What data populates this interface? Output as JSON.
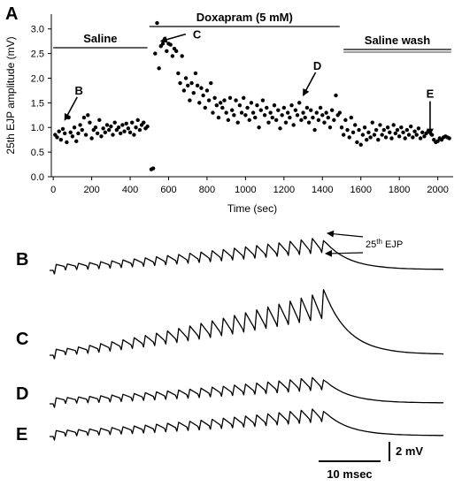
{
  "figure_label": "A",
  "chart_data": {
    "type": "scatter",
    "title": "",
    "xlabel": "Time (sec)",
    "ylabel": "25th EJP amplitude (mV)",
    "xlim": [
      -10,
      2080
    ],
    "ylim": [
      0,
      3.3
    ],
    "xticks": [
      0,
      200,
      400,
      600,
      800,
      1000,
      1200,
      1400,
      1600,
      1800,
      2000
    ],
    "yticks": [
      0.0,
      0.5,
      1.0,
      1.5,
      2.0,
      2.5,
      3.0
    ],
    "ytick_labels": [
      "0.0",
      "0.5",
      "1.0",
      "1.5",
      "2.0",
      "2.5",
      "3.0"
    ],
    "grid": false,
    "conditions": [
      {
        "label": "Saline",
        "x_start": 0,
        "x_end": 490
      },
      {
        "label": "Doxapram (5 mM)",
        "x_start": 500,
        "x_end": 1490
      },
      {
        "label": "Saline wash",
        "x_start": 1510,
        "x_end": 2070
      }
    ],
    "annotations": [
      {
        "label": "B",
        "x": 60,
        "y": 1.15
      },
      {
        "label": "C",
        "x": 560,
        "y": 2.75
      },
      {
        "label": "D",
        "x": 1300,
        "y": 1.65
      },
      {
        "label": "E",
        "x": 1960,
        "y": 0.85
      }
    ],
    "points": [
      [
        10,
        0.85
      ],
      [
        20,
        0.8
      ],
      [
        30,
        0.92
      ],
      [
        40,
        0.75
      ],
      [
        50,
        0.97
      ],
      [
        60,
        0.88
      ],
      [
        70,
        0.7
      ],
      [
        80,
        1.2
      ],
      [
        90,
        0.9
      ],
      [
        100,
        0.82
      ],
      [
        110,
        1.0
      ],
      [
        120,
        0.72
      ],
      [
        130,
        0.88
      ],
      [
        140,
        1.05
      ],
      [
        150,
        0.95
      ],
      [
        160,
        1.2
      ],
      [
        170,
        0.85
      ],
      [
        180,
        1.25
      ],
      [
        190,
        1.1
      ],
      [
        200,
        0.78
      ],
      [
        210,
        0.95
      ],
      [
        220,
        1.0
      ],
      [
        230,
        0.88
      ],
      [
        240,
        1.15
      ],
      [
        250,
        0.82
      ],
      [
        260,
        0.98
      ],
      [
        270,
        0.9
      ],
      [
        280,
        1.05
      ],
      [
        290,
        0.95
      ],
      [
        300,
        1.02
      ],
      [
        310,
        0.85
      ],
      [
        320,
        1.1
      ],
      [
        330,
        0.95
      ],
      [
        340,
        1.0
      ],
      [
        350,
        0.88
      ],
      [
        360,
        1.05
      ],
      [
        370,
        0.92
      ],
      [
        380,
        1.08
      ],
      [
        390,
        0.98
      ],
      [
        400,
        0.9
      ],
      [
        410,
        1.1
      ],
      [
        420,
        0.85
      ],
      [
        430,
        1.0
      ],
      [
        440,
        1.15
      ],
      [
        450,
        0.95
      ],
      [
        460,
        1.05
      ],
      [
        470,
        1.1
      ],
      [
        480,
        0.98
      ],
      [
        490,
        1.02
      ],
      [
        510,
        0.15
      ],
      [
        520,
        0.17
      ],
      [
        530,
        2.5
      ],
      [
        540,
        3.12
      ],
      [
        550,
        2.2
      ],
      [
        560,
        2.65
      ],
      [
        570,
        2.7
      ],
      [
        580,
        2.8
      ],
      [
        590,
        2.55
      ],
      [
        600,
        2.7
      ],
      [
        610,
        2.68
      ],
      [
        620,
        2.45
      ],
      [
        630,
        2.6
      ],
      [
        640,
        2.55
      ],
      [
        650,
        2.1
      ],
      [
        660,
        1.9
      ],
      [
        670,
        2.45
      ],
      [
        680,
        1.75
      ],
      [
        690,
        2.0
      ],
      [
        700,
        1.85
      ],
      [
        710,
        1.55
      ],
      [
        720,
        1.9
      ],
      [
        730,
        1.7
      ],
      [
        740,
        2.1
      ],
      [
        750,
        1.85
      ],
      [
        760,
        1.5
      ],
      [
        770,
        1.8
      ],
      [
        780,
        1.65
      ],
      [
        790,
        1.4
      ],
      [
        800,
        1.75
      ],
      [
        810,
        1.55
      ],
      [
        820,
        1.9
      ],
      [
        830,
        1.3
      ],
      [
        840,
        1.6
      ],
      [
        850,
        1.45
      ],
      [
        860,
        1.2
      ],
      [
        870,
        1.5
      ],
      [
        880,
        1.4
      ],
      [
        890,
        1.55
      ],
      [
        900,
        1.3
      ],
      [
        910,
        1.15
      ],
      [
        920,
        1.6
      ],
      [
        930,
        1.35
      ],
      [
        940,
        1.25
      ],
      [
        950,
        1.55
      ],
      [
        960,
        1.1
      ],
      [
        970,
        1.45
      ],
      [
        980,
        1.3
      ],
      [
        990,
        1.6
      ],
      [
        1000,
        1.25
      ],
      [
        1010,
        1.4
      ],
      [
        1020,
        1.15
      ],
      [
        1030,
        1.5
      ],
      [
        1040,
        1.3
      ],
      [
        1050,
        1.2
      ],
      [
        1060,
        1.45
      ],
      [
        1070,
        1.0
      ],
      [
        1080,
        1.35
      ],
      [
        1090,
        1.55
      ],
      [
        1100,
        1.25
      ],
      [
        1110,
        1.4
      ],
      [
        1120,
        1.1
      ],
      [
        1130,
        1.3
      ],
      [
        1140,
        1.2
      ],
      [
        1150,
        1.45
      ],
      [
        1160,
        1.15
      ],
      [
        1170,
        1.35
      ],
      [
        1180,
        0.98
      ],
      [
        1190,
        1.25
      ],
      [
        1200,
        1.4
      ],
      [
        1210,
        1.1
      ],
      [
        1220,
        1.3
      ],
      [
        1230,
        1.2
      ],
      [
        1240,
        1.45
      ],
      [
        1250,
        1.05
      ],
      [
        1260,
        1.35
      ],
      [
        1270,
        1.25
      ],
      [
        1280,
        1.5
      ],
      [
        1290,
        1.15
      ],
      [
        1300,
        1.3
      ],
      [
        1310,
        1.2
      ],
      [
        1320,
        1.4
      ],
      [
        1330,
        1.1
      ],
      [
        1340,
        1.35
      ],
      [
        1350,
        1.2
      ],
      [
        1360,
        0.95
      ],
      [
        1370,
        1.3
      ],
      [
        1380,
        1.15
      ],
      [
        1390,
        1.4
      ],
      [
        1400,
        1.25
      ],
      [
        1410,
        1.1
      ],
      [
        1420,
        1.3
      ],
      [
        1430,
        1.2
      ],
      [
        1440,
        1.0
      ],
      [
        1450,
        1.35
      ],
      [
        1460,
        1.15
      ],
      [
        1470,
        1.65
      ],
      [
        1480,
        1.25
      ],
      [
        1490,
        1.3
      ],
      [
        1500,
        1.0
      ],
      [
        1510,
        0.85
      ],
      [
        1520,
        1.15
      ],
      [
        1530,
        0.95
      ],
      [
        1540,
        0.8
      ],
      [
        1550,
        1.2
      ],
      [
        1560,
        0.9
      ],
      [
        1570,
        1.05
      ],
      [
        1580,
        0.7
      ],
      [
        1590,
        0.95
      ],
      [
        1600,
        0.65
      ],
      [
        1610,
        0.85
      ],
      [
        1620,
        1.0
      ],
      [
        1630,
        0.75
      ],
      [
        1640,
        0.9
      ],
      [
        1650,
        0.8
      ],
      [
        1660,
        1.1
      ],
      [
        1670,
        0.85
      ],
      [
        1680,
        0.95
      ],
      [
        1690,
        0.75
      ],
      [
        1700,
        1.05
      ],
      [
        1710,
        0.85
      ],
      [
        1720,
        0.95
      ],
      [
        1730,
        0.8
      ],
      [
        1740,
        1.0
      ],
      [
        1750,
        0.9
      ],
      [
        1760,
        0.78
      ],
      [
        1770,
        1.05
      ],
      [
        1780,
        0.88
      ],
      [
        1790,
        0.95
      ],
      [
        1800,
        0.82
      ],
      [
        1810,
        1.0
      ],
      [
        1820,
        0.9
      ],
      [
        1830,
        0.78
      ],
      [
        1840,
        0.95
      ],
      [
        1850,
        0.85
      ],
      [
        1860,
        1.02
      ],
      [
        1870,
        0.8
      ],
      [
        1880,
        0.92
      ],
      [
        1890,
        0.85
      ],
      [
        1900,
        0.98
      ],
      [
        1910,
        0.78
      ],
      [
        1920,
        0.9
      ],
      [
        1930,
        0.82
      ],
      [
        1940,
        0.88
      ],
      [
        1950,
        0.92
      ],
      [
        1960,
        0.9
      ],
      [
        1970,
        0.85
      ],
      [
        1980,
        0.75
      ],
      [
        1990,
        0.7
      ],
      [
        2000,
        0.72
      ],
      [
        2010,
        0.78
      ],
      [
        2020,
        0.75
      ],
      [
        2030,
        0.8
      ],
      [
        2040,
        0.82
      ],
      [
        2050,
        0.8
      ],
      [
        2060,
        0.78
      ]
    ]
  },
  "traces": [
    {
      "label": "B",
      "amp": 1.15,
      "final_spike": 1.25,
      "ejp_label_top": "25",
      "ejp_label_sup": "th",
      "ejp_label_rest": " EJP"
    },
    {
      "label": "C",
      "amp": 2.4,
      "final_spike": 2.75
    },
    {
      "label": "D",
      "amp": 0.9,
      "final_spike": 1.0
    },
    {
      "label": "E",
      "amp": 0.95,
      "final_spike": 1.05
    }
  ],
  "scale_bar": {
    "time_label": "10 msec",
    "voltage_label": "2 mV"
  }
}
